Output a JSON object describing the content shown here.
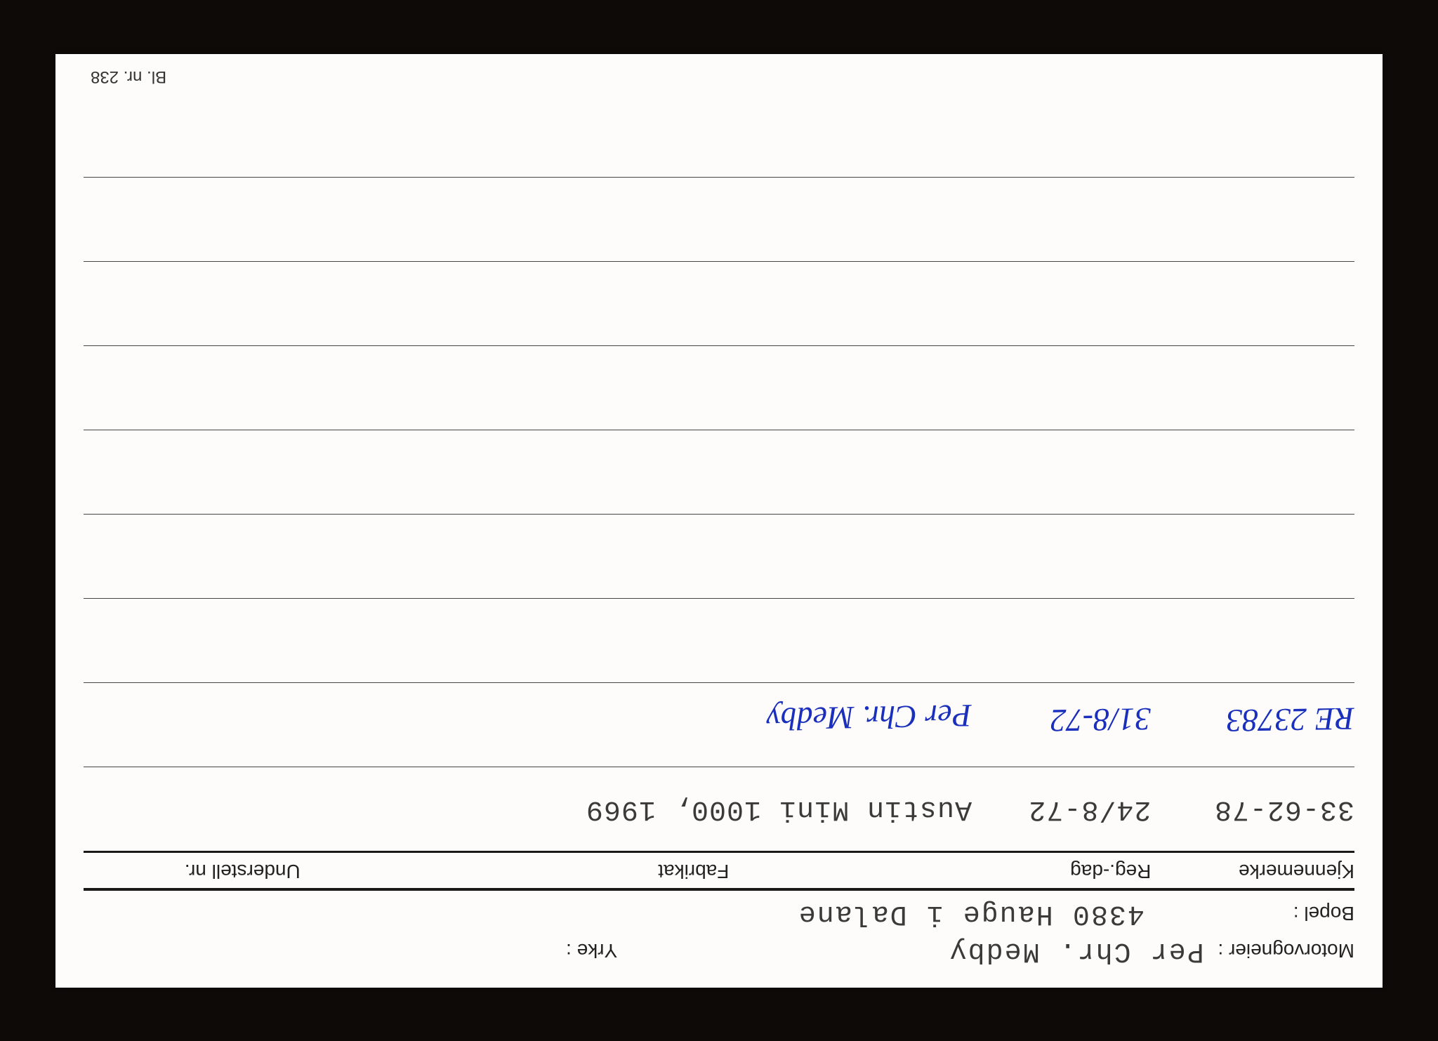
{
  "labels": {
    "motorvogneier": "Motorvogneier :",
    "yrke": "Yrke :",
    "bopel": "Bopel :",
    "kjennemerke": "Kjennemerke",
    "regdag": "Reg.-dag",
    "fabrikat": "Fabrikat",
    "understell": "Understell nr."
  },
  "owner": {
    "name": "Per Chr. Medby",
    "yrke": "",
    "bopel": "4380 Hauge i Dalane"
  },
  "rows": [
    {
      "kjennemerke": "33-62-78",
      "regdag": "24/8-72",
      "fabrikat": "Austin Mini 1000, 1969",
      "understell": "",
      "typed": true
    },
    {
      "kjennemerke": "RE 23783",
      "regdag": "31/8-72",
      "fabrikat": "Per Chr. Medby",
      "understell": "",
      "typed": false
    },
    {
      "kjennemerke": "",
      "regdag": "",
      "fabrikat": "",
      "understell": "",
      "typed": true
    },
    {
      "kjennemerke": "",
      "regdag": "",
      "fabrikat": "",
      "understell": "",
      "typed": true
    },
    {
      "kjennemerke": "",
      "regdag": "",
      "fabrikat": "",
      "understell": "",
      "typed": true
    },
    {
      "kjennemerke": "",
      "regdag": "",
      "fabrikat": "",
      "understell": "",
      "typed": true
    },
    {
      "kjennemerke": "",
      "regdag": "",
      "fabrikat": "",
      "understell": "",
      "typed": true
    },
    {
      "kjennemerke": "",
      "regdag": "",
      "fabrikat": "",
      "understell": "",
      "typed": true
    }
  ],
  "form_nr": "Bl. nr. 238",
  "colors": {
    "page_bg": "#0d0a08",
    "card_bg": "#fdfcfa",
    "ink": "#1a1a1a",
    "type": "#3a3a3a",
    "pen": "#1a2fbb"
  }
}
